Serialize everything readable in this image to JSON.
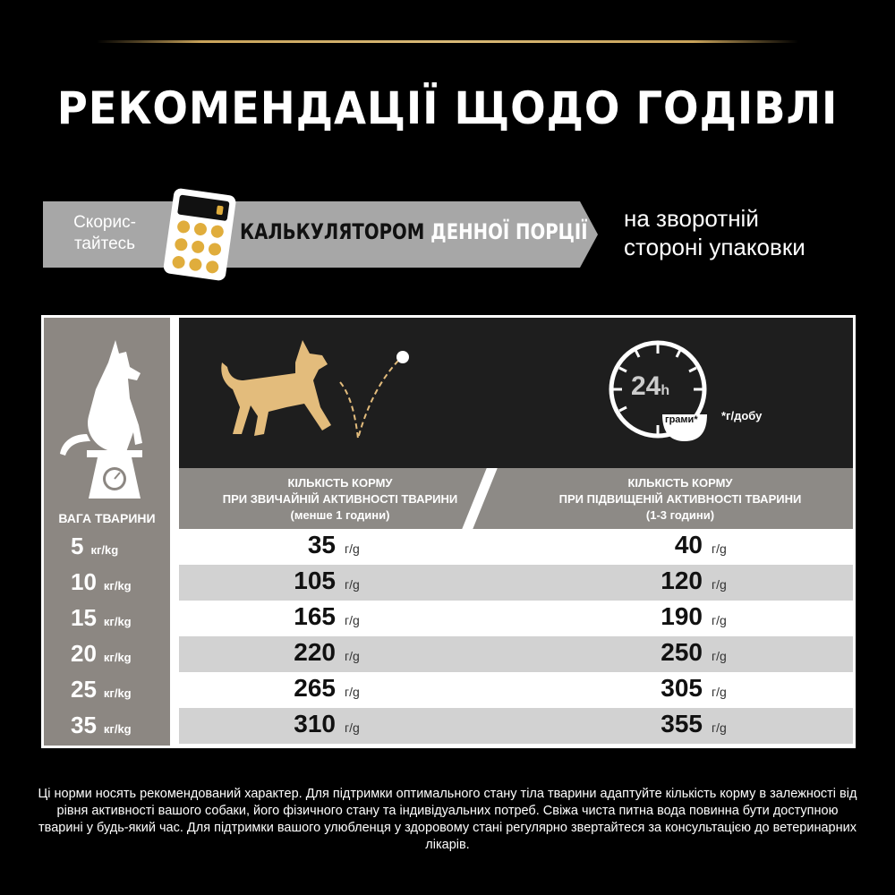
{
  "title": "РЕКОМЕНДАЦІЇ ЩОДО ГОДІВЛІ",
  "banner": {
    "use_line1": "Скорис-",
    "use_line2": "тайтесь",
    "calc_dark": "КАЛЬКУЛЯТОРОМ",
    "calc_light": "ДЕННОЇ ПОРЦІЇ",
    "back_line1": "на зворотній",
    "back_line2": "стороні упаковки"
  },
  "colors": {
    "gold": "#c9a35a",
    "dog": "#e3bc7c",
    "gray": "#8c8782"
  },
  "header": {
    "clock_label": "24",
    "clock_unit": "h",
    "bowl_label": "грами*",
    "per_day": "*г/добу"
  },
  "columns": {
    "weight": "ВАГА ТВАРИНИ",
    "normal": [
      "КІЛЬКІСТЬ КОРМУ",
      "ПРИ ЗВИЧАЙНІЙ АКТИВНОСТІ ТВАРИНИ",
      "(менше 1 години)"
    ],
    "high": [
      "КІЛЬКІСТЬ КОРМУ",
      "ПРИ ПІДВИЩЕНІЙ АКТИВНОСТІ ТВАРИНИ",
      "(1-3 години)"
    ]
  },
  "weight_unit": "кг/kg",
  "value_unit": "г/g",
  "rows": [
    {
      "weight": "5",
      "normal": "35",
      "high": "40"
    },
    {
      "weight": "10",
      "normal": "105",
      "high": "120"
    },
    {
      "weight": "15",
      "normal": "165",
      "high": "190"
    },
    {
      "weight": "20",
      "normal": "220",
      "high": "250"
    },
    {
      "weight": "25",
      "normal": "265",
      "high": "305"
    },
    {
      "weight": "35",
      "normal": "310",
      "high": "355"
    }
  ],
  "footer": "Ці норми носять рекомендований характер. Для підтримки оптимального стану тіла тварини адаптуйте кількість корму в залежності від рівня активності вашого собаки, його фізичного стану та індивідуальних потреб. Свіжа чиста питна вода повинна бути доступною тварині у будь-який час. Для підтримки вашого улюбленця у здоровому стані регулярно звертайтеся за консультацією до ветеринарних лікарів."
}
